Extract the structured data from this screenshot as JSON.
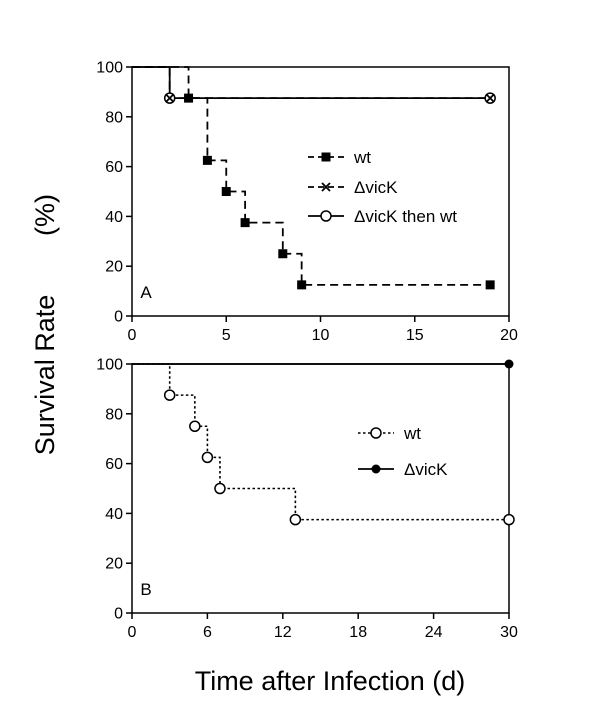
{
  "figure": {
    "ylabel": "Survival Rate",
    "ylabel_unit": "(%)",
    "xlabel": "Time after Infection  (d)"
  },
  "chart_data": [
    {
      "type": "line",
      "step": true,
      "panel_label": "A",
      "xlim": [
        0,
        20
      ],
      "ylim": [
        0,
        100
      ],
      "xticks": [
        0,
        5,
        10,
        15,
        20
      ],
      "xtick_labels": [
        "0",
        "5",
        "10",
        "15",
        "20"
      ],
      "yticks": [
        0,
        20,
        40,
        60,
        80,
        100
      ],
      "ytick_labels": [
        "0",
        "20",
        "40",
        "60",
        "80",
        "100"
      ],
      "legend_position": "right",
      "grid": false,
      "series": [
        {
          "name": "wt",
          "marker": "filled-square",
          "line": "dashed",
          "x": [
            0,
            3,
            4,
            5,
            6,
            8,
            9,
            19
          ],
          "y": [
            100,
            87.5,
            62.5,
            50,
            37.5,
            25,
            12.5,
            12.5
          ],
          "markers": [
            [
              3,
              87.5
            ],
            [
              4,
              62.5
            ],
            [
              5,
              50
            ],
            [
              6,
              37.5
            ],
            [
              8,
              25
            ],
            [
              9,
              12.5
            ],
            [
              19,
              12.5
            ]
          ]
        },
        {
          "name": "ΔvicK",
          "marker": "cross",
          "line": "dashed",
          "x": [
            0,
            2,
            19
          ],
          "y": [
            100,
            87.5,
            87.5
          ],
          "markers": [
            [
              2,
              87.5
            ],
            [
              19,
              87.5
            ]
          ]
        },
        {
          "name": "ΔvicK then wt",
          "marker": "open-circle",
          "line": "solid",
          "x": [
            0,
            2,
            19
          ],
          "y": [
            100,
            87.5,
            87.5
          ],
          "markers": [
            [
              2,
              87.5
            ],
            [
              19,
              87.5
            ]
          ]
        }
      ]
    },
    {
      "type": "line",
      "step": true,
      "panel_label": "B",
      "xlim": [
        0,
        30
      ],
      "ylim": [
        0,
        100
      ],
      "xticks": [
        0,
        6,
        12,
        18,
        24,
        30
      ],
      "xtick_labels": [
        "0",
        "6",
        "12",
        "18",
        "24",
        "30"
      ],
      "yticks": [
        0,
        20,
        40,
        60,
        80,
        100
      ],
      "ytick_labels": [
        "0",
        "20",
        "40",
        "60",
        "80",
        "100"
      ],
      "legend_position": "right",
      "grid": false,
      "series": [
        {
          "name": "wt",
          "marker": "open-circle",
          "line": "dotted",
          "x": [
            0,
            3,
            5,
            6,
            7,
            13,
            30
          ],
          "y": [
            100,
            87.5,
            75,
            62.5,
            50,
            37.5,
            37.5
          ],
          "markers": [
            [
              3,
              87.5
            ],
            [
              5,
              75
            ],
            [
              6,
              62.5
            ],
            [
              7,
              50
            ],
            [
              13,
              37.5
            ],
            [
              30,
              37.5
            ]
          ]
        },
        {
          "name": "ΔvicK",
          "marker": "filled-circle",
          "line": "solid",
          "x": [
            0,
            30
          ],
          "y": [
            100,
            100
          ],
          "markers": [
            [
              30,
              100
            ]
          ]
        }
      ]
    }
  ]
}
